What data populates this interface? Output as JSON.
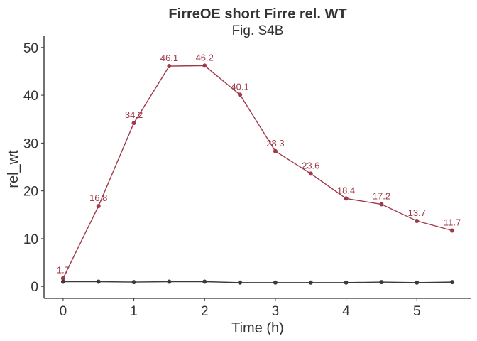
{
  "chart_data": {
    "type": "line",
    "title": "FirreOE short Firre rel. WT",
    "subtitle": "Fig. S4B",
    "xlabel": "Time (h)",
    "ylabel": "rel_wt",
    "xlim": [
      -0.27,
      5.77
    ],
    "ylim": [
      -2.5,
      52.5
    ],
    "x_ticks": [
      0,
      1,
      2,
      3,
      4,
      5
    ],
    "y_ticks": [
      0,
      10,
      20,
      30,
      40,
      50
    ],
    "grid": false,
    "legend": "none",
    "x": [
      0,
      0.5,
      1,
      1.5,
      2,
      2.5,
      3,
      3.5,
      4,
      4.5,
      5,
      5.5
    ],
    "series": [
      {
        "color": "#a03a4a",
        "values": [
          1.7,
          16.8,
          34.2,
          46.1,
          46.2,
          40.1,
          28.3,
          23.6,
          18.4,
          17.2,
          13.7,
          11.7
        ],
        "labels": [
          "1.7",
          "16.8",
          "34.2",
          "46.1",
          "46.2",
          "40.1",
          "28.3",
          "23.6",
          "18.4",
          "17.2",
          "13.7",
          "11.7"
        ]
      },
      {
        "color": "#3a3a3a",
        "values": [
          1.0,
          1.0,
          0.9,
          1.0,
          1.0,
          0.8,
          0.8,
          0.8,
          0.8,
          0.9,
          0.8,
          0.9
        ]
      }
    ]
  }
}
